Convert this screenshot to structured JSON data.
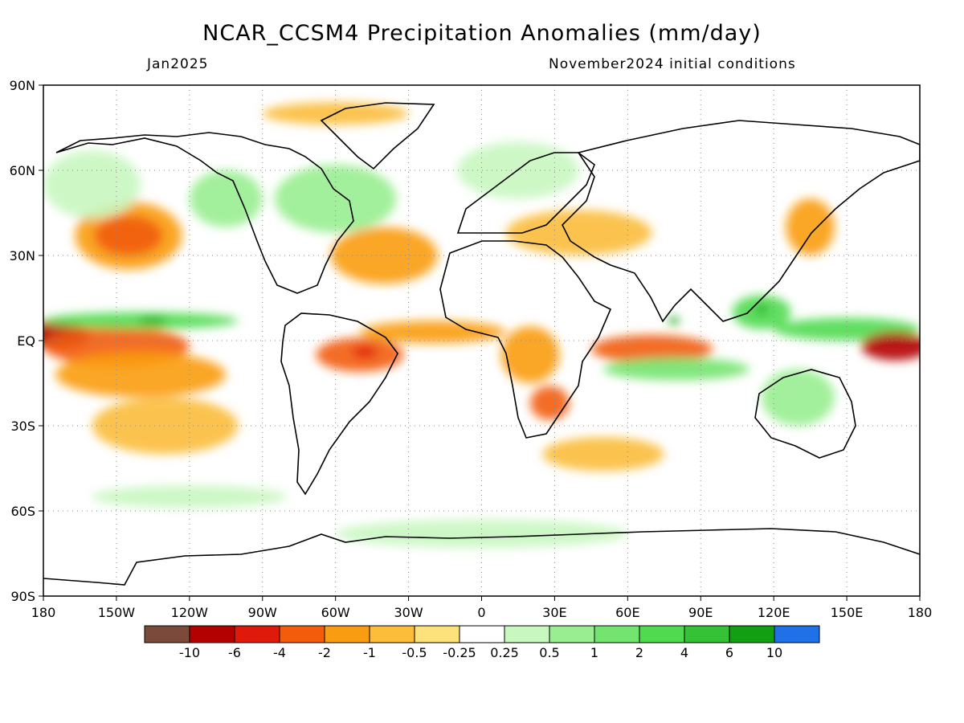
{
  "title": "NCAR_CCSM4 Precipitation Anomalies (mm/day)",
  "subtitle_left": "Jan2025",
  "subtitle_right": "November2024 initial conditions",
  "map": {
    "lon_range": [
      -180,
      180
    ],
    "lat_range": [
      -90,
      90
    ],
    "lat_ticks": [
      {
        "value": 90,
        "label": "90N"
      },
      {
        "value": 60,
        "label": "60N"
      },
      {
        "value": 30,
        "label": "30N"
      },
      {
        "value": 0,
        "label": "EQ"
      },
      {
        "value": -30,
        "label": "30S"
      },
      {
        "value": -60,
        "label": "60S"
      },
      {
        "value": -90,
        "label": "90S"
      }
    ],
    "lon_ticks": [
      {
        "value": -180,
        "label": "180"
      },
      {
        "value": -150,
        "label": "150W"
      },
      {
        "value": -120,
        "label": "120W"
      },
      {
        "value": -90,
        "label": "90W"
      },
      {
        "value": -60,
        "label": "60W"
      },
      {
        "value": -30,
        "label": "30W"
      },
      {
        "value": 0,
        "label": "0"
      },
      {
        "value": 30,
        "label": "30E"
      },
      {
        "value": 60,
        "label": "60E"
      },
      {
        "value": 90,
        "label": "90E"
      },
      {
        "value": 120,
        "label": "120E"
      },
      {
        "value": 150,
        "label": "150E"
      },
      {
        "value": 180,
        "label": "180"
      }
    ],
    "grid": "dotted"
  },
  "colorbar": {
    "colors": [
      "#7a4a3a",
      "#b30000",
      "#e01a0a",
      "#f25c0a",
      "#f99c12",
      "#fbbd3a",
      "#fde17a",
      "#ffffff",
      "#c8f7c0",
      "#98ee90",
      "#73e46f",
      "#4fda4f",
      "#36c236",
      "#12a012",
      "#2070e8"
    ],
    "labels": [
      "-10",
      "-6",
      "-4",
      "-2",
      "-1",
      "-0.5",
      "-0.25",
      "0.25",
      "0.5",
      "1",
      "2",
      "4",
      "6",
      "10"
    ]
  },
  "anomalies": [
    {
      "lon": -175,
      "lat": 2,
      "rx": 14,
      "ry": 5,
      "level": -6
    },
    {
      "lon": -150,
      "lat": -2,
      "rx": 30,
      "ry": 7,
      "level": -2
    },
    {
      "lon": -140,
      "lat": -12,
      "rx": 35,
      "ry": 8,
      "level": -1
    },
    {
      "lon": -130,
      "lat": -30,
      "rx": 30,
      "ry": 10,
      "level": -0.5
    },
    {
      "lon": -140,
      "lat": 7,
      "rx": 40,
      "ry": 3,
      "level": 4
    },
    {
      "lon": -135,
      "lat": 7,
      "rx": 6,
      "ry": 1.2,
      "level": 10
    },
    {
      "lon": -145,
      "lat": 37,
      "rx": 22,
      "ry": 12,
      "level": -1
    },
    {
      "lon": -145,
      "lat": 37,
      "rx": 14,
      "ry": 7,
      "level": -2
    },
    {
      "lon": -160,
      "lat": 55,
      "rx": 20,
      "ry": 12,
      "level": 0.5
    },
    {
      "lon": -105,
      "lat": 50,
      "rx": 15,
      "ry": 10,
      "level": 1
    },
    {
      "lon": -40,
      "lat": 30,
      "rx": 22,
      "ry": 10,
      "level": -1
    },
    {
      "lon": -60,
      "lat": 50,
      "rx": 25,
      "ry": 12,
      "level": 1
    },
    {
      "lon": -50,
      "lat": -5,
      "rx": 18,
      "ry": 6,
      "level": -2
    },
    {
      "lon": -48,
      "lat": -4,
      "rx": 5,
      "ry": 2,
      "level": -4
    },
    {
      "lon": -20,
      "lat": 3,
      "rx": 30,
      "ry": 4,
      "level": -1
    },
    {
      "lon": 20,
      "lat": -5,
      "rx": 12,
      "ry": 10,
      "level": -1
    },
    {
      "lon": 28,
      "lat": -22,
      "rx": 8,
      "ry": 6,
      "level": -2
    },
    {
      "lon": 40,
      "lat": 38,
      "rx": 30,
      "ry": 8,
      "level": -0.5
    },
    {
      "lon": 15,
      "lat": 60,
      "rx": 25,
      "ry": 10,
      "level": 0.5
    },
    {
      "lon": 70,
      "lat": -3,
      "rx": 25,
      "ry": 5,
      "level": -2
    },
    {
      "lon": 80,
      "lat": -10,
      "rx": 30,
      "ry": 4,
      "level": 2
    },
    {
      "lon": 79,
      "lat": 7,
      "rx": 2,
      "ry": 1.5,
      "level": 10
    },
    {
      "lon": 115,
      "lat": 10,
      "rx": 12,
      "ry": 6,
      "level": 4
    },
    {
      "lon": 115,
      "lat": 11,
      "rx": 2.5,
      "ry": 1.5,
      "level": 10
    },
    {
      "lon": 150,
      "lat": 4,
      "rx": 30,
      "ry": 4,
      "level": 4
    },
    {
      "lon": 170,
      "lat": -2,
      "rx": 14,
      "ry": 5,
      "level": -6
    },
    {
      "lon": 130,
      "lat": -20,
      "rx": 15,
      "ry": 10,
      "level": 1
    },
    {
      "lon": 135,
      "lat": 40,
      "rx": 10,
      "ry": 10,
      "level": -1
    },
    {
      "lon": 0,
      "lat": -68,
      "rx": 60,
      "ry": 5,
      "level": 0.5
    },
    {
      "lon": -60,
      "lat": 80,
      "rx": 30,
      "ry": 4,
      "level": -0.5
    },
    {
      "lon": 50,
      "lat": -40,
      "rx": 25,
      "ry": 6,
      "level": -0.5
    },
    {
      "lon": -120,
      "lat": -55,
      "rx": 40,
      "ry": 4,
      "level": 0.5
    }
  ]
}
